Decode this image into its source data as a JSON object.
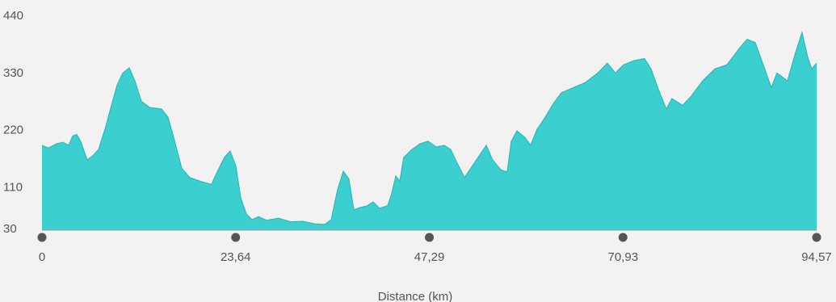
{
  "chart_data": {
    "type": "area",
    "x_label": "Distance (km)",
    "color": "#3ccfd0",
    "line_color": "#2fb9bb",
    "axis_color": "#9a9a9a",
    "tick_dot_color": "#555555",
    "grid": false,
    "xlim": [
      0,
      94.57
    ],
    "ylim": [
      30,
      440
    ],
    "xticks": [
      0,
      {
        "value": 23.64,
        "label": "23,64"
      },
      {
        "value": 47.29,
        "label": "47,29"
      },
      {
        "value": 70.93,
        "label": "70,93"
      },
      {
        "value": 94.57,
        "label": "94,57"
      }
    ],
    "yticks": [
      30,
      110,
      220,
      330,
      440
    ],
    "x": [
      0,
      0.79,
      1.77,
      2.56,
      3.25,
      3.75,
      4.24,
      4.73,
      5.52,
      6.21,
      6.9,
      7.69,
      8.48,
      9.17,
      9.86,
      10.65,
      11.34,
      12.13,
      13.11,
      14.6,
      15.38,
      16.07,
      17.06,
      18.04,
      19.52,
      20.71,
      21.3,
      22.28,
      22.97,
      23.66,
      24.26,
      24.95,
      25.64,
      26.43,
      27.41,
      28.89,
      30.37,
      31.85,
      33.33,
      34.51,
      35.3,
      36.09,
      36.78,
      37.47,
      38.06,
      38.75,
      39.74,
      40.43,
      41.22,
      42.2,
      42.69,
      43.19,
      43.68,
      44.17,
      45.16,
      46.15,
      47.13,
      48.12,
      49.11,
      49.9,
      50.59,
      51.58,
      52.56,
      53.55,
      54.24,
      55.02,
      56.01,
      56.8,
      57.29,
      57.98,
      58.97,
      59.66,
      60.44,
      61.43,
      62.42,
      63.4,
      64.88,
      66.36,
      67.84,
      69.02,
      70.01,
      71,
      72.28,
      73.56,
      74.35,
      75.24,
      76.22,
      76.91,
      78.2,
      79.18,
      80.66,
      82.14,
      83.62,
      85.1,
      86.08,
      87.07,
      88.05,
      89.04,
      89.73,
      91.01,
      92,
      92.79,
      93.48,
      93.97,
      94.57
    ],
    "values": [
      193,
      188,
      196,
      199,
      193,
      211,
      214,
      200,
      165,
      173,
      185,
      224,
      270,
      309,
      332,
      342,
      317,
      278,
      266,
      263,
      247,
      208,
      149,
      131,
      123,
      118,
      139,
      170,
      182,
      154,
      92,
      61,
      50,
      56,
      49,
      53,
      46,
      47,
      42,
      41,
      50,
      108,
      143,
      128,
      69,
      73,
      77,
      84,
      72,
      77,
      100,
      134,
      124,
      170,
      185,
      196,
      201,
      190,
      193,
      185,
      162,
      131,
      154,
      177,
      193,
      165,
      146,
      142,
      201,
      221,
      208,
      193,
      224,
      247,
      273,
      294,
      304,
      314,
      332,
      351,
      332,
      348,
      356,
      360,
      340,
      301,
      263,
      283,
      270,
      286,
      317,
      340,
      348,
      379,
      397,
      391,
      348,
      304,
      332,
      317,
      371,
      410,
      363,
      340,
      351
    ]
  }
}
